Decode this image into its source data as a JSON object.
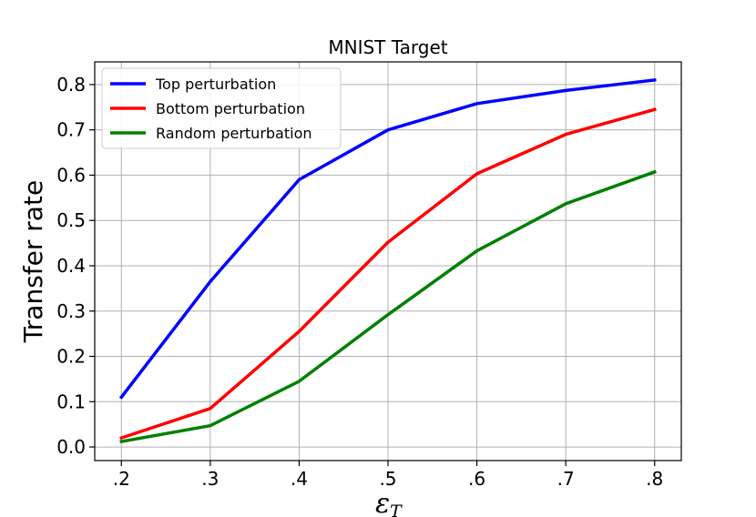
{
  "chart_data": {
    "type": "line",
    "title": "MNIST Target",
    "xlabel": "ε",
    "xlabel_subscript": "T",
    "ylabel": "Transfer rate",
    "x": [
      0.2,
      0.3,
      0.4,
      0.5,
      0.6,
      0.7,
      0.8
    ],
    "x_tick_labels": [
      ".2",
      ".3",
      ".4",
      ".5",
      ".6",
      ".7",
      ".8"
    ],
    "y_ticks": [
      0.0,
      0.1,
      0.2,
      0.3,
      0.4,
      0.5,
      0.6,
      0.7,
      0.8
    ],
    "y_tick_labels": [
      "0.0",
      "0.1",
      "0.2",
      "0.3",
      "0.4",
      "0.5",
      "0.6",
      "0.7",
      "0.8"
    ],
    "xlim": [
      0.17,
      0.83
    ],
    "ylim": [
      -0.03,
      0.85
    ],
    "grid": true,
    "legend_position": "top-left",
    "series": [
      {
        "name": "Top perturbation",
        "color": "#0000ff",
        "values": [
          0.11,
          0.365,
          0.59,
          0.7,
          0.758,
          0.787,
          0.81
        ]
      },
      {
        "name": "Bottom perturbation",
        "color": "#ff0000",
        "values": [
          0.02,
          0.085,
          0.255,
          0.452,
          0.603,
          0.69,
          0.745
        ]
      },
      {
        "name": "Random perturbation",
        "color": "#008000",
        "values": [
          0.012,
          0.047,
          0.145,
          0.292,
          0.433,
          0.537,
          0.607
        ]
      }
    ]
  }
}
